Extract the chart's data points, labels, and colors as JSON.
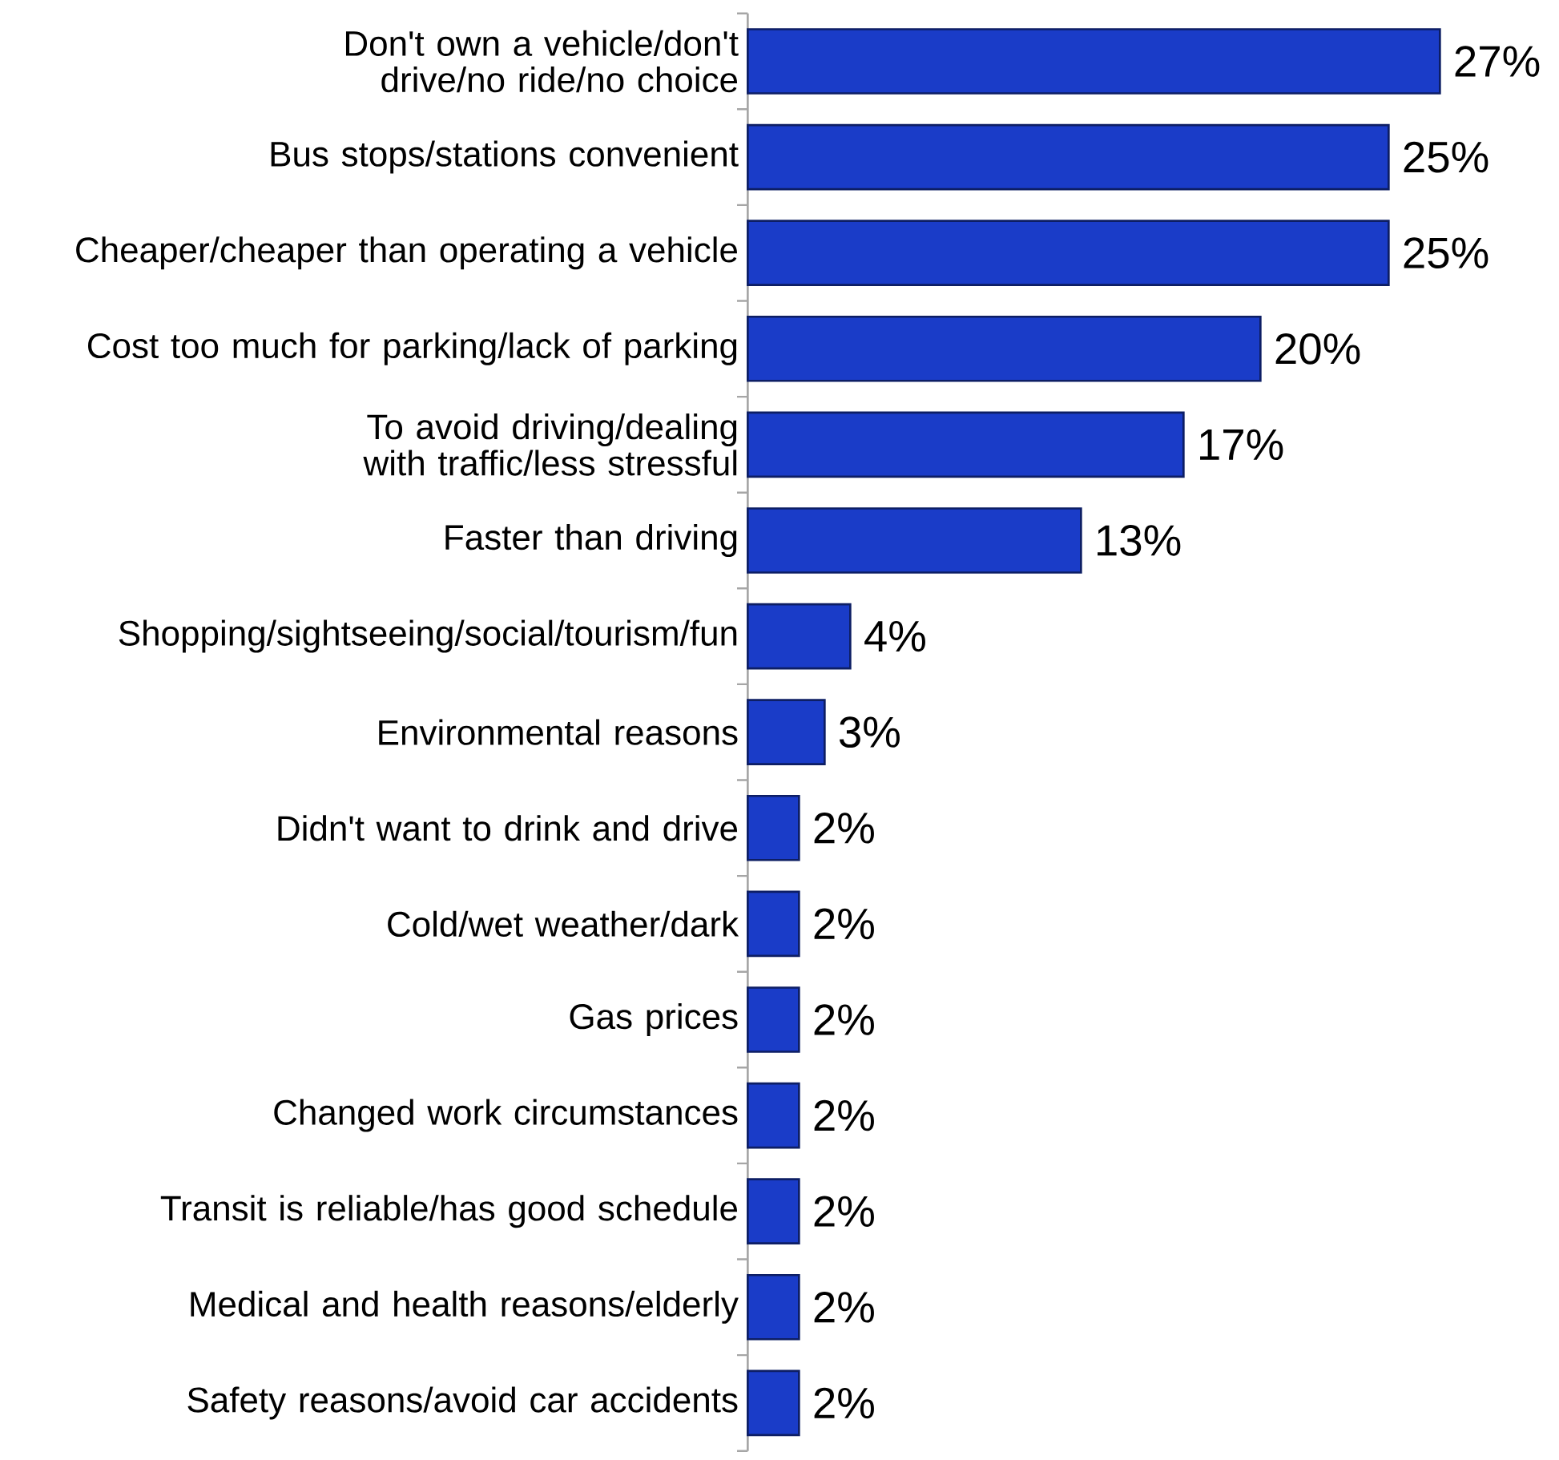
{
  "chart_data": {
    "type": "bar",
    "orientation": "horizontal",
    "color": "#1a3cc8",
    "categories": [
      "Don't own a vehicle/don't drive/no ride/no choice",
      "Bus stops/stations convenient",
      "Cheaper/cheaper than operating a vehicle",
      "Cost too much for parking/lack of parking",
      "To avoid driving/dealing with traffic/less stressful",
      "Faster than driving",
      "Shopping/sightseeing/social/tourism/fun",
      "Environmental reasons",
      "Didn't want to drink and drive",
      "Cold/wet weather/dark",
      "Gas prices",
      "Changed work circumstances",
      "Transit is reliable/has good schedule",
      "Medical and health reasons/elderly",
      "Safety reasons/avoid car accidents"
    ],
    "values": [
      27,
      25,
      25,
      20,
      17,
      13,
      4,
      3,
      2,
      2,
      2,
      2,
      2,
      2,
      2
    ],
    "value_labels": [
      "27%",
      "25%",
      "25%",
      "20%",
      "17%",
      "13%",
      "4%",
      "3%",
      "2%",
      "2%",
      "2%",
      "2%",
      "2%",
      "2%",
      "2%"
    ]
  }
}
